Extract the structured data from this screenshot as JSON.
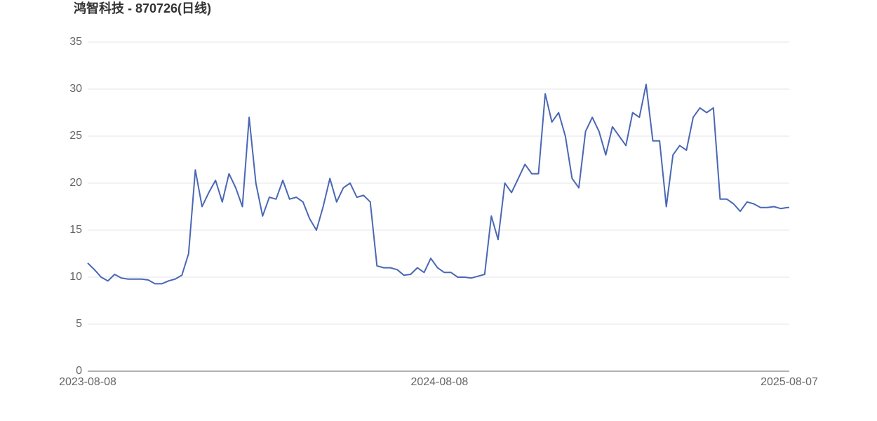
{
  "chart_data": {
    "type": "line",
    "title": "鸿智科技 - 870726(日线)",
    "x": [
      "2023-08-08",
      "2023-08-15",
      "2023-08-22",
      "2023-08-29",
      "2023-09-05",
      "2023-09-12",
      "2023-09-19",
      "2023-09-26",
      "2023-10-03",
      "2023-10-10",
      "2023-10-17",
      "2023-10-24",
      "2023-10-31",
      "2023-11-07",
      "2023-11-14",
      "2023-11-21",
      "2023-11-28",
      "2023-12-05",
      "2023-12-12",
      "2023-12-19",
      "2023-12-26",
      "2024-01-02",
      "2024-01-09",
      "2024-01-16",
      "2024-01-23",
      "2024-01-30",
      "2024-02-06",
      "2024-02-13",
      "2024-02-20",
      "2024-02-27",
      "2024-03-05",
      "2024-03-12",
      "2024-03-19",
      "2024-03-26",
      "2024-04-02",
      "2024-04-09",
      "2024-04-16",
      "2024-04-23",
      "2024-04-30",
      "2024-05-07",
      "2024-05-14",
      "2024-05-21",
      "2024-05-28",
      "2024-06-04",
      "2024-06-11",
      "2024-06-18",
      "2024-06-25",
      "2024-07-02",
      "2024-07-09",
      "2024-07-16",
      "2024-07-23",
      "2024-07-30",
      "2024-08-06",
      "2024-08-13",
      "2024-08-20",
      "2024-08-27",
      "2024-09-03",
      "2024-09-10",
      "2024-09-17",
      "2024-09-24",
      "2024-10-01",
      "2024-10-08",
      "2024-10-15",
      "2024-10-22",
      "2024-10-29",
      "2024-11-05",
      "2024-11-12",
      "2024-11-19",
      "2024-11-26",
      "2024-12-03",
      "2024-12-10",
      "2024-12-17",
      "2024-12-24",
      "2024-12-31",
      "2025-01-07",
      "2025-01-14",
      "2025-01-21",
      "2025-01-28",
      "2025-02-04",
      "2025-02-11",
      "2025-02-18",
      "2025-02-25",
      "2025-03-04",
      "2025-03-11",
      "2025-03-18",
      "2025-03-25",
      "2025-04-01",
      "2025-04-08",
      "2025-04-15",
      "2025-04-22",
      "2025-04-29",
      "2025-05-06",
      "2025-05-13",
      "2025-05-20",
      "2025-05-27",
      "2025-06-03",
      "2025-06-10",
      "2025-06-17",
      "2025-06-24",
      "2025-07-01",
      "2025-07-08",
      "2025-07-15",
      "2025-07-22",
      "2025-07-29",
      "2025-08-05",
      "2025-08-07"
    ],
    "series": [
      {
        "color": "#4a67b5",
        "values": [
          11.5,
          10.8,
          10.0,
          9.6,
          10.3,
          9.9,
          9.8,
          9.8,
          9.8,
          9.7,
          9.3,
          9.3,
          9.6,
          9.8,
          10.2,
          12.5,
          21.4,
          17.5,
          19,
          20.3,
          18,
          21,
          19.5,
          17.5,
          27,
          20,
          16.5,
          18.5,
          18.3,
          20.3,
          18.3,
          18.5,
          18,
          16.2,
          15,
          17.5,
          20.5,
          18,
          19.5,
          20,
          18.5,
          18.7,
          18,
          11.2,
          11,
          11,
          10.8,
          10.2,
          10.3,
          11,
          10.5,
          12,
          11,
          10.5,
          10.5,
          10,
          10,
          9.9,
          10.1,
          10.3,
          16.5,
          14,
          20,
          19,
          20.5,
          22,
          21,
          21,
          29.5,
          26.5,
          27.5,
          25,
          20.5,
          19.5,
          25.5,
          27,
          25.5,
          23,
          26,
          25,
          24,
          27.5,
          27,
          30.5,
          24.5,
          24.5,
          17.5,
          23,
          24,
          23.5,
          27,
          28,
          27.5,
          28,
          18.3,
          18.3,
          17.8,
          17,
          18,
          17.8,
          17.4,
          17.4,
          17.5,
          17.3,
          17.4,
          17.4
        ]
      }
    ],
    "xlim": [
      "2023-08-08",
      "2025-08-07"
    ],
    "xticks": [
      "2023-08-08",
      "2024-08-08",
      "2025-08-07"
    ],
    "ylim": [
      0,
      35
    ],
    "yticks": [
      0,
      5,
      10,
      15,
      20,
      25,
      30,
      35
    ],
    "grid": true
  }
}
